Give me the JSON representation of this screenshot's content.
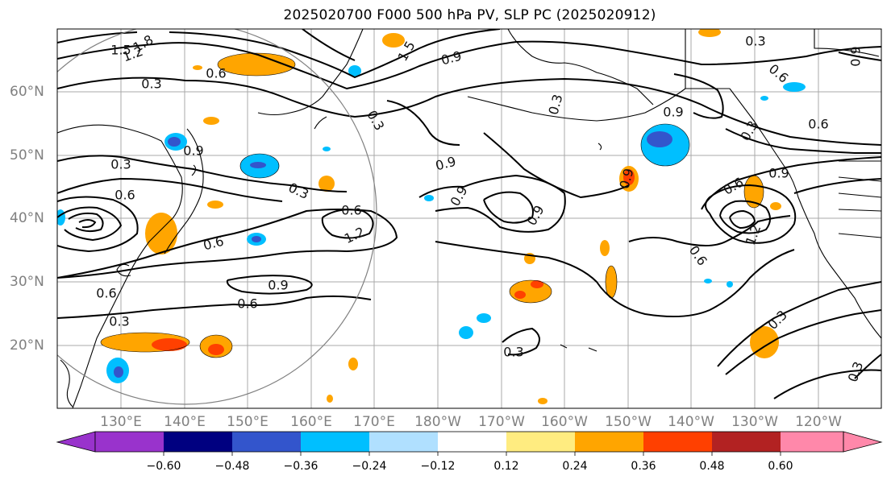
{
  "title": "2025020700 F000 500 hPa PV, SLP PC (2025020912)",
  "lat_labels": [
    "60°N",
    "50°N",
    "40°N",
    "30°N",
    "20°N"
  ],
  "lon_labels": [
    "130°E",
    "140°E",
    "150°E",
    "160°E",
    "170°E",
    "180°W",
    "170°W",
    "160°W",
    "150°W",
    "140°W",
    "130°W",
    "120°W"
  ],
  "colorbar": {
    "colors": [
      "#9933cc",
      "#000080",
      "#3355cc",
      "#00bfff",
      "#b0e0ff",
      "#ffffff",
      "#ffec80",
      "#ffa500",
      "#ff4000",
      "#b22222",
      "#ff88aa"
    ],
    "ticks": [
      "−0.60",
      "−0.48",
      "−0.36",
      "−0.24",
      "−0.12",
      "0.12",
      "0.24",
      "0.36",
      "0.48",
      "0.60"
    ]
  },
  "contour_labels": [
    "1.8",
    "1.2",
    "1.5",
    "0.6",
    "0.3",
    "1.5",
    "0.9",
    "0.3",
    "0.9",
    "0.9",
    "0.6",
    "0.6",
    "0.3",
    "0.9",
    "0.3",
    "0.3",
    "0.9",
    "0.6",
    "0.9",
    "0.9",
    "1.2",
    "0.6",
    "0.6",
    "0.9",
    "0.6",
    "0.3",
    "0.3",
    "0.6",
    "0.9",
    "0.6",
    "1.2",
    "0.6",
    "0.9",
    "0.3",
    "0.3",
    "0.3",
    "0.3"
  ]
}
